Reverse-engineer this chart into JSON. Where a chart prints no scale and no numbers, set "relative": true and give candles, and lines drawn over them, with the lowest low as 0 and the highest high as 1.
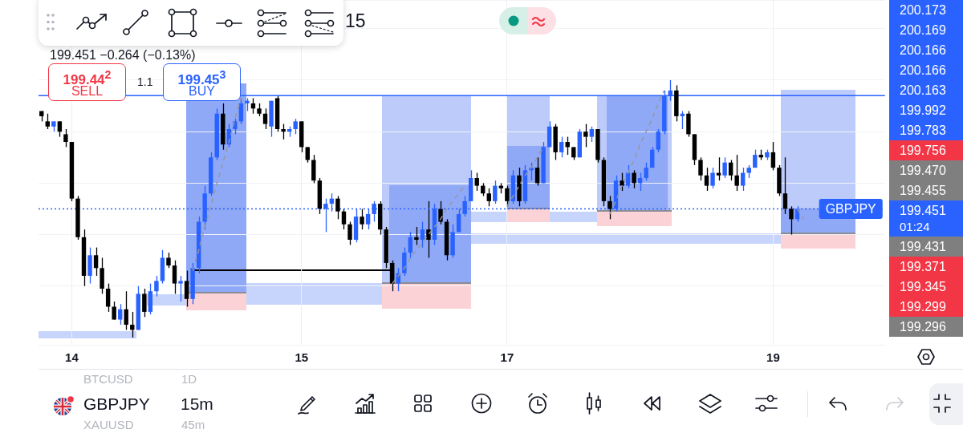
{
  "chart_data": {
    "type": "candlestick",
    "title": "15",
    "subtitle": "199.451 −0.264 (−0.13%)",
    "relative": true,
    "grid": true,
    "categories": [
      null,
      null,
      null,
      null,
      null,
      "14",
      null,
      null,
      null,
      null,
      null,
      null,
      null,
      null,
      null,
      null,
      null,
      null,
      null,
      null,
      null,
      null,
      null,
      null,
      null,
      null,
      null,
      null,
      null,
      null,
      null,
      null,
      null,
      null,
      null,
      null,
      null,
      null,
      null,
      null,
      null,
      null,
      null,
      "15",
      null,
      null,
      null,
      null,
      null,
      null,
      null,
      null,
      null,
      null,
      null,
      null,
      null,
      null,
      null,
      null,
      null,
      null,
      null,
      null,
      null,
      null,
      null,
      null,
      null,
      null,
      null,
      null,
      null,
      null,
      null,
      null,
      null,
      "17",
      null,
      null,
      null,
      null,
      null,
      null,
      null,
      null,
      null,
      null,
      null,
      null,
      null,
      null,
      null,
      null,
      null,
      null,
      null,
      null,
      null,
      null,
      null,
      null,
      null,
      null,
      null,
      null,
      null,
      null,
      null,
      null,
      null,
      null,
      null,
      null,
      null,
      null,
      null,
      null,
      null,
      null,
      null,
      "19",
      null,
      null,
      null,
      null,
      null,
      null,
      null,
      null,
      null,
      null,
      null,
      null,
      null,
      null,
      null,
      null,
      null,
      null
    ],
    "ohlc": [
      [
        0.88,
        0.88,
        0.84,
        0.86
      ],
      [
        0.84,
        0.87,
        0.81,
        0.82
      ],
      [
        0.82,
        0.84,
        0.8,
        0.84
      ],
      [
        0.84,
        0.84,
        0.78,
        0.8
      ],
      [
        0.79,
        0.81,
        0.74,
        0.76
      ],
      [
        0.76,
        0.76,
        0.53,
        0.54
      ],
      [
        0.54,
        0.55,
        0.38,
        0.39
      ],
      [
        0.39,
        0.42,
        0.2,
        0.24
      ],
      [
        0.24,
        0.35,
        0.21,
        0.32
      ],
      [
        0.32,
        0.35,
        0.24,
        0.27
      ],
      [
        0.27,
        0.31,
        0.17,
        0.19
      ],
      [
        0.19,
        0.21,
        0.1,
        0.12
      ],
      [
        0.12,
        0.14,
        0.07,
        0.07
      ],
      [
        0.07,
        0.13,
        0.05,
        0.11
      ],
      [
        0.11,
        0.18,
        0.03,
        0.05
      ],
      [
        0.05,
        0.1,
        0,
        0.03
      ],
      [
        0.03,
        0.2,
        0.03,
        0.17
      ],
      [
        0.17,
        0.19,
        0.08,
        0.1
      ],
      [
        0.1,
        0.21,
        0.09,
        0.18
      ],
      [
        0.18,
        0.24,
        0.16,
        0.22
      ],
      [
        0.22,
        0.34,
        0.21,
        0.31
      ],
      [
        0.31,
        0.33,
        0.27,
        0.28
      ],
      [
        0.28,
        0.3,
        0.17,
        0.21
      ],
      [
        0.21,
        0.24,
        0.14,
        0.22
      ],
      [
        0.22,
        0.26,
        0.12,
        0.15
      ],
      [
        0.15,
        0.29,
        0.13,
        0.27
      ],
      [
        0.27,
        0.47,
        0.25,
        0.45
      ],
      [
        0.45,
        0.59,
        0.42,
        0.56
      ],
      [
        0.56,
        0.72,
        0.55,
        0.7
      ],
      [
        0.7,
        0.89,
        0.69,
        0.87
      ],
      [
        0.87,
        0.91,
        0.73,
        0.75
      ],
      [
        0.75,
        0.83,
        0.74,
        0.81
      ],
      [
        0.81,
        0.85,
        0.79,
        0.84
      ],
      [
        0.84,
        0.93,
        0.83,
        0.91
      ],
      [
        0.91,
        0.93,
        0.88,
        0.92
      ],
      [
        0.91,
        0.93,
        0.87,
        0.89
      ],
      [
        0.89,
        0.91,
        0.86,
        0.87
      ],
      [
        0.87,
        0.89,
        0.81,
        0.83
      ],
      [
        0.82,
        0.92,
        0.78,
        0.92
      ],
      [
        0.93,
        0.94,
        0.8,
        0.81
      ],
      [
        0.81,
        0.83,
        0.77,
        0.8
      ],
      [
        0.8,
        0.82,
        0.78,
        0.81
      ],
      [
        0.81,
        0.85,
        0.79,
        0.84
      ],
      [
        0.84,
        0.84,
        0.72,
        0.74
      ],
      [
        0.74,
        0.74,
        0.68,
        0.69
      ],
      [
        0.69,
        0.71,
        0.6,
        0.61
      ],
      [
        0.61,
        0.62,
        0.48,
        0.5
      ],
      [
        0.5,
        0.54,
        0.41,
        0.52
      ],
      [
        0.52,
        0.56,
        0.49,
        0.54
      ],
      [
        0.54,
        0.55,
        0.46,
        0.49
      ],
      [
        0.49,
        0.5,
        0.42,
        0.44
      ],
      [
        0.44,
        0.45,
        0.36,
        0.38
      ],
      [
        0.38,
        0.5,
        0.37,
        0.47
      ],
      [
        0.47,
        0.5,
        0.42,
        0.44
      ],
      [
        0.44,
        0.5,
        0.42,
        0.48
      ],
      [
        0.48,
        0.53,
        0.45,
        0.52
      ],
      [
        0.52,
        0.53,
        0.4,
        0.42
      ],
      [
        0.42,
        0.43,
        0.27,
        0.29
      ],
      [
        0.29,
        0.3,
        0.18,
        0.21
      ],
      [
        0.21,
        0.27,
        0.18,
        0.25
      ],
      [
        0.25,
        0.35,
        0.24,
        0.33
      ],
      [
        0.33,
        0.41,
        0.31,
        0.39
      ],
      [
        0.39,
        0.43,
        0.36,
        0.38
      ],
      [
        0.38,
        0.45,
        0.35,
        0.42
      ],
      [
        0.42,
        0.53,
        0.31,
        0.38
      ],
      [
        0.38,
        0.52,
        0.36,
        0.5
      ],
      [
        0.5,
        0.53,
        0.44,
        0.45
      ],
      [
        0.45,
        0.46,
        0.3,
        0.32
      ],
      [
        0.32,
        0.44,
        0.31,
        0.41
      ],
      [
        0.41,
        0.5,
        0.41,
        0.48
      ],
      [
        0.48,
        0.55,
        0.47,
        0.53
      ],
      [
        0.53,
        0.65,
        0.53,
        0.62
      ],
      [
        0.62,
        0.64,
        0.57,
        0.59
      ],
      [
        0.59,
        0.6,
        0.55,
        0.56
      ],
      [
        0.56,
        0.58,
        0.51,
        0.53
      ],
      [
        0.53,
        0.61,
        0.52,
        0.59
      ],
      [
        0.59,
        0.6,
        0.56,
        0.58
      ],
      [
        0.58,
        0.59,
        0.51,
        0.53
      ],
      [
        0.53,
        0.65,
        0.52,
        0.63
      ],
      [
        0.63,
        0.66,
        0.51,
        0.53
      ],
      [
        0.53,
        0.67,
        0.52,
        0.65
      ],
      [
        0.65,
        0.68,
        0.61,
        0.66
      ],
      [
        0.66,
        0.7,
        0.59,
        0.6
      ],
      [
        0.6,
        0.76,
        0.6,
        0.74
      ],
      [
        0.74,
        0.84,
        0.74,
        0.82
      ],
      [
        0.82,
        0.83,
        0.69,
        0.72
      ],
      [
        0.72,
        0.78,
        0.7,
        0.76
      ],
      [
        0.76,
        0.78,
        0.71,
        0.74
      ],
      [
        0.74,
        0.74,
        0.69,
        0.7
      ],
      [
        0.7,
        0.81,
        0.7,
        0.8
      ],
      [
        0.8,
        0.83,
        0.74,
        0.78
      ],
      [
        0.78,
        0.82,
        0.76,
        0.81
      ],
      [
        0.81,
        0.81,
        0.68,
        0.69
      ],
      [
        0.69,
        0.7,
        0.51,
        0.53
      ],
      [
        0.53,
        0.55,
        0.46,
        0.5
      ],
      [
        0.5,
        0.63,
        0.49,
        0.61
      ],
      [
        0.61,
        0.64,
        0.57,
        0.59
      ],
      [
        0.59,
        0.67,
        0.58,
        0.64
      ],
      [
        0.64,
        0.65,
        0.58,
        0.6
      ],
      [
        0.6,
        0.64,
        0.57,
        0.62
      ],
      [
        0.62,
        0.68,
        0.61,
        0.66
      ],
      [
        0.66,
        0.74,
        0.66,
        0.73
      ],
      [
        0.73,
        0.81,
        0.72,
        0.8
      ],
      [
        0.8,
        0.96,
        0.79,
        0.94
      ],
      [
        0.94,
        1,
        0.92,
        0.96
      ],
      [
        0.96,
        0.98,
        0.84,
        0.86
      ],
      [
        0.86,
        0.88,
        0.81,
        0.87
      ],
      [
        0.87,
        0.88,
        0.78,
        0.79
      ],
      [
        0.79,
        0.79,
        0.67,
        0.69
      ],
      [
        0.69,
        0.7,
        0.61,
        0.63
      ],
      [
        0.63,
        0.66,
        0.57,
        0.59
      ],
      [
        0.59,
        0.66,
        0.58,
        0.64
      ],
      [
        0.64,
        0.7,
        0.61,
        0.63
      ],
      [
        0.63,
        0.7,
        0.62,
        0.68
      ],
      [
        0.68,
        0.69,
        0.61,
        0.63
      ],
      [
        0.63,
        0.71,
        0.57,
        0.59
      ],
      [
        0.59,
        0.66,
        0.57,
        0.64
      ],
      [
        0.64,
        0.67,
        0.62,
        0.66
      ],
      [
        0.66,
        0.73,
        0.66,
        0.71
      ],
      [
        0.71,
        0.73,
        0.69,
        0.7
      ],
      [
        0.7,
        0.73,
        0.69,
        0.72
      ],
      [
        0.72,
        0.76,
        0.65,
        0.66
      ],
      [
        0.66,
        0.67,
        0.55,
        0.56
      ],
      [
        0.56,
        0.7,
        0.48,
        0.5
      ],
      [
        0.5,
        0.51,
        0.4,
        0.46
      ],
      [
        0.46,
        0.51,
        0.45,
        0.5
      ],
      null,
      null,
      null,
      null,
      null,
      null,
      null,
      null,
      null,
      null,
      null,
      null,
      null,
      null
    ],
    "colors": [
      "#000000",
      "#000000",
      "#2962ff",
      "#000000",
      "#000000",
      "#000000",
      "#000000",
      "#000000",
      "#2962ff",
      "#000000",
      "#000000",
      "#000000",
      "#000000",
      "#2962ff",
      "#000000",
      "#000000",
      "#2962ff",
      "#000000",
      "#2962ff",
      "#2962ff",
      "#2962ff",
      "#000000",
      "#000000",
      "#2962ff",
      "#000000",
      "#2962ff",
      "#2962ff",
      "#2962ff",
      "#2962ff",
      "#2962ff",
      "#000000",
      "#2962ff",
      "#2962ff",
      "#2962ff",
      "#2962ff",
      "#000000",
      "#000000",
      "#000000",
      "#2962ff",
      "#000000",
      "#000000",
      "#2962ff",
      "#2962ff",
      "#000000",
      "#000000",
      "#000000",
      "#000000",
      "#2962ff",
      "#2962ff",
      "#000000",
      "#000000",
      "#000000",
      "#2962ff",
      "#000000",
      "#2962ff",
      "#2962ff",
      "#000000",
      "#000000",
      "#000000",
      "#2962ff",
      "#2962ff",
      "#2962ff",
      "#000000",
      "#2962ff",
      "#000000",
      "#2962ff",
      "#000000",
      "#000000",
      "#2962ff",
      "#2962ff",
      "#2962ff",
      "#2962ff",
      "#000000",
      "#000000",
      "#000000",
      "#2962ff",
      "#000000",
      "#000000",
      "#2962ff",
      "#000000",
      "#2962ff",
      "#2962ff",
      "#000000",
      "#2962ff",
      "#2962ff",
      "#000000",
      "#2962ff",
      "#000000",
      "#000000",
      "#2962ff",
      "#000000",
      "#2962ff",
      "#000000",
      "#000000",
      "#000000",
      "#2962ff",
      "#000000",
      "#2962ff",
      "#000000",
      "#2962ff",
      "#2962ff",
      "#2962ff",
      "#2962ff",
      "#2962ff",
      "#2962ff",
      "#000000",
      "#2962ff",
      "#000000",
      "#000000",
      "#000000",
      "#000000",
      "#2962ff",
      "#000000",
      "#2962ff",
      "#000000",
      "#000000",
      "#2962ff",
      "#2962ff",
      "#2962ff",
      "#000000",
      "#2962ff",
      "#000000",
      "#000000",
      "#000000",
      "#000000",
      "#2962ff",
      null,
      null,
      null,
      null,
      null,
      null,
      null,
      null,
      null,
      null,
      null,
      null,
      null,
      null
    ],
    "series": [
      {
        "type": "line",
        "color": "#9598a1",
        "line_style": "dashed",
        "values": [
          null,
          null,
          null,
          null,
          null,
          null,
          null,
          null,
          null,
          null,
          null,
          null,
          null,
          null,
          null,
          null,
          null,
          null,
          null,
          null,
          null,
          null,
          null,
          null,
          null,
          0.26,
          0.34,
          0.43,
          0.51,
          0.6,
          0.68,
          0.76,
          0.85,
          0.93,
          null,
          null,
          null,
          null,
          null,
          null,
          null,
          null,
          null,
          null,
          null,
          null,
          null,
          null,
          null,
          null,
          null,
          null,
          null,
          null,
          null,
          null,
          null,
          null,
          0.21,
          0.24,
          0.27,
          0.31,
          0.34,
          0.37,
          0.4,
          0.43,
          0.46,
          0.5,
          0.53,
          0.56,
          0.59,
          null,
          null,
          null,
          null,
          null,
          null,
          0.51,
          0.55,
          0.59,
          0.63,
          0.66,
          0.7,
          0.74,
          null,
          null,
          null,
          null,
          null,
          null,
          null,
          null,
          null,
          null,
          0.48,
          0.53,
          0.59,
          0.64,
          0.69,
          0.75,
          0.8,
          0.85,
          0.91,
          0.96,
          null,
          null,
          null,
          null,
          null,
          null,
          null,
          null,
          null,
          null,
          null,
          null,
          null,
          null,
          null,
          null,
          null,
          null,
          null,
          null,
          null,
          0.5,
          0.46,
          null,
          null,
          null,
          null,
          null,
          null,
          null,
          null,
          null,
          null,
          null,
          null,
          null
        ]
      }
    ],
    "ref_lines": [
      {
        "axis": "y",
        "value": 0.94,
        "color": "#2962ff",
        "line_style": "solid"
      },
      {
        "axis": "y",
        "value": 0.5,
        "label": "GBPJPY",
        "color": "#2962ff",
        "line_style": "dotted"
      }
    ],
    "annotations": [
      "199.44$^{2}$",
      "SELL",
      "1.1",
      "199.45$^{3}$",
      "BUY",
      "200.173",
      "200.169",
      "200.166",
      "200.166",
      "200.163",
      "199.992",
      "199.783",
      "199.756",
      "199.470",
      "199.455",
      "199.451",
      "199.431",
      "199.371",
      "199.345",
      "199.299",
      "199.296",
      "01:24",
      "BTCUSD",
      "1D",
      "GBPJPY",
      "15m",
      "XAUUSD",
      "45m"
    ]
  }
}
